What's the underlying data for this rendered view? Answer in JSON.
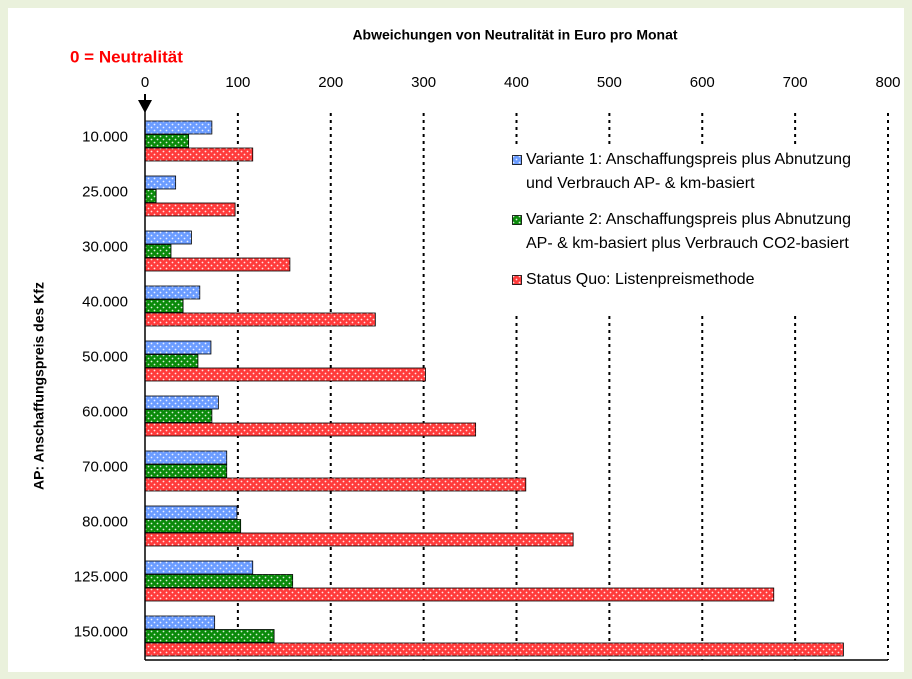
{
  "chart_data": {
    "type": "hbar",
    "title": "Abweichungen von Neutralität in Euro pro Monat",
    "annotation": "0  =  Neutralität",
    "y_label": "AP: Anschaffungspreis des Kfz",
    "categories": [
      "10.000",
      "25.000",
      "30.000",
      "40.000",
      "50.000",
      "60.000",
      "70.000",
      "80.000",
      "125.000",
      "150.000"
    ],
    "series": [
      {
        "name": "Variante 1: Anschaffungspreis plus Abnutzung und Verbrauch AP- & km-basiert",
        "color": "#6b9cff",
        "values": [
          72,
          33,
          50,
          59,
          71,
          79,
          88,
          99,
          116,
          75
        ]
      },
      {
        "name": "Variante 2: Anschaffungspreis plus Abnutzung AP- & km-basiert plus Verbrauch CO2-basiert",
        "color": "#0a8a0a",
        "values": [
          47,
          12,
          28,
          41,
          57,
          72,
          88,
          103,
          159,
          139
        ]
      },
      {
        "name": "Status Quo: Listenpreismethode",
        "color": "#ff3b3b",
        "values": [
          116,
          97,
          156,
          248,
          302,
          356,
          410,
          461,
          677,
          752
        ]
      }
    ],
    "xlim": [
      0,
      800
    ],
    "xticks": [
      0,
      100,
      200,
      300,
      400,
      500,
      600,
      700,
      800
    ],
    "grid": true
  }
}
